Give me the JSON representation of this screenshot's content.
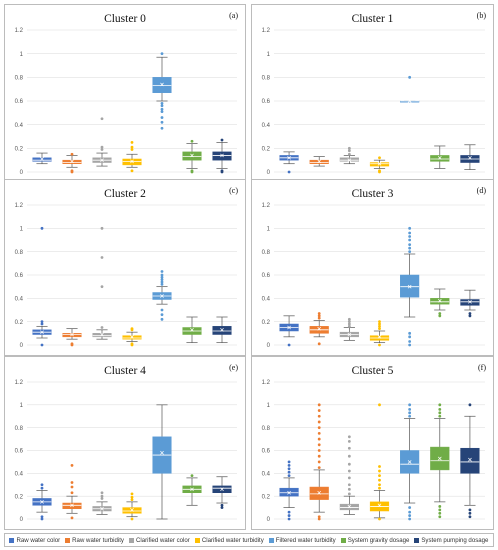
{
  "chart_data": {
    "type": "boxplot",
    "y_ticks": [
      "0",
      "0.2",
      "0.4",
      "0.6",
      "0.8",
      "1",
      "1.2"
    ],
    "ylim": [
      0,
      1.2
    ],
    "series_names": [
      "Raw water color",
      "Raw water turbidity",
      "Clarified water color",
      "Clarified water turbidity",
      "Filtered water turbidity",
      "System gravity dosage",
      "System pumping dosage"
    ],
    "series_colors": [
      "#4472C4",
      "#ED7D31",
      "#A5A5A5",
      "#FFC000",
      "#5B9BD5",
      "#70AD47",
      "#264478"
    ],
    "panels": [
      {
        "title": "Cluster 0",
        "tag": "(a)",
        "boxes": [
          {
            "min": 0.07,
            "q1": 0.09,
            "median": 0.1,
            "q3": 0.12,
            "max": 0.16,
            "mean": 0.11,
            "outliers": []
          },
          {
            "min": 0.04,
            "q1": 0.07,
            "median": 0.08,
            "q3": 0.1,
            "max": 0.14,
            "mean": 0.09,
            "outliers": [
              0.0,
              0.01,
              0.15
            ]
          },
          {
            "min": 0.05,
            "q1": 0.08,
            "median": 0.1,
            "q3": 0.12,
            "max": 0.16,
            "mean": 0.1,
            "outliers": [
              0.19,
              0.21,
              0.45
            ]
          },
          {
            "min": 0.04,
            "q1": 0.06,
            "median": 0.09,
            "q3": 0.11,
            "max": 0.15,
            "mean": 0.09,
            "outliers": [
              0.01,
              0.19,
              0.21,
              0.25
            ]
          },
          {
            "min": 0.6,
            "q1": 0.67,
            "median": 0.73,
            "q3": 0.8,
            "max": 0.97,
            "mean": 0.74,
            "outliers": [
              0.37,
              0.42,
              0.46,
              0.51,
              0.53,
              0.56,
              0.58,
              1.0
            ]
          },
          {
            "min": 0.03,
            "q1": 0.1,
            "median": 0.13,
            "q3": 0.17,
            "max": 0.24,
            "mean": 0.14,
            "outliers": [
              0.0,
              0.01,
              0.26
            ]
          },
          {
            "min": 0.03,
            "q1": 0.1,
            "median": 0.14,
            "q3": 0.17,
            "max": 0.25,
            "mean": 0.14,
            "outliers": [
              0.0,
              0.01,
              0.27
            ]
          }
        ]
      },
      {
        "title": "Cluster 1",
        "tag": "(b)",
        "boxes": [
          {
            "min": 0.07,
            "q1": 0.1,
            "median": 0.12,
            "q3": 0.14,
            "max": 0.17,
            "mean": 0.12,
            "outliers": [
              0.0
            ]
          },
          {
            "min": 0.05,
            "q1": 0.07,
            "median": 0.08,
            "q3": 0.1,
            "max": 0.13,
            "mean": 0.09,
            "outliers": []
          },
          {
            "min": 0.07,
            "q1": 0.09,
            "median": 0.1,
            "q3": 0.12,
            "max": 0.14,
            "mean": 0.1,
            "outliers": [
              0.15,
              0.18,
              0.2
            ]
          },
          {
            "min": 0.03,
            "q1": 0.05,
            "median": 0.07,
            "q3": 0.08,
            "max": 0.1,
            "mean": 0.07,
            "outliers": [
              0.0,
              0.01,
              0.12
            ]
          },
          {
            "min": 0.6,
            "q1": 0.6,
            "median": 0.6,
            "q3": 0.6,
            "max": 0.6,
            "mean": 0.6,
            "outliers": [
              0.8
            ]
          },
          {
            "min": 0.03,
            "q1": 0.09,
            "median": 0.11,
            "q3": 0.14,
            "max": 0.22,
            "mean": 0.12,
            "outliers": []
          },
          {
            "min": 0.02,
            "q1": 0.08,
            "median": 0.11,
            "q3": 0.14,
            "max": 0.23,
            "mean": 0.12,
            "outliers": []
          }
        ]
      },
      {
        "title": "Cluster 2",
        "tag": "(c)",
        "boxes": [
          {
            "min": 0.06,
            "q1": 0.09,
            "median": 0.11,
            "q3": 0.13,
            "max": 0.16,
            "mean": 0.11,
            "outliers": [
              0.0,
              0.18,
              0.2,
              1.0
            ]
          },
          {
            "min": 0.05,
            "q1": 0.07,
            "median": 0.09,
            "q3": 0.1,
            "max": 0.14,
            "mean": 0.09,
            "outliers": [
              0.0,
              0.01
            ]
          },
          {
            "min": 0.05,
            "q1": 0.07,
            "median": 0.08,
            "q3": 0.1,
            "max": 0.13,
            "mean": 0.09,
            "outliers": [
              0.15,
              0.5,
              0.75,
              1.0
            ]
          },
          {
            "min": 0.03,
            "q1": 0.05,
            "median": 0.06,
            "q3": 0.08,
            "max": 0.11,
            "mean": 0.07,
            "outliers": [
              0.0,
              0.01,
              0.13,
              0.14
            ]
          },
          {
            "min": 0.35,
            "q1": 0.39,
            "median": 0.42,
            "q3": 0.45,
            "max": 0.5,
            "mean": 0.42,
            "outliers": [
              0.22,
              0.26,
              0.3,
              0.52,
              0.54,
              0.56,
              0.58,
              0.6,
              0.63
            ]
          },
          {
            "min": 0.02,
            "q1": 0.09,
            "median": 0.12,
            "q3": 0.15,
            "max": 0.24,
            "mean": 0.13,
            "outliers": []
          },
          {
            "min": 0.02,
            "q1": 0.09,
            "median": 0.12,
            "q3": 0.16,
            "max": 0.24,
            "mean": 0.13,
            "outliers": []
          }
        ]
      },
      {
        "title": "Cluster 3",
        "tag": "(d)",
        "boxes": [
          {
            "min": 0.07,
            "q1": 0.12,
            "median": 0.15,
            "q3": 0.18,
            "max": 0.25,
            "mean": 0.15,
            "outliers": [
              0.0
            ]
          },
          {
            "min": 0.07,
            "q1": 0.1,
            "median": 0.13,
            "q3": 0.16,
            "max": 0.21,
            "mean": 0.14,
            "outliers": [
              0.01,
              0.23,
              0.25,
              0.27
            ]
          },
          {
            "min": 0.04,
            "q1": 0.07,
            "median": 0.09,
            "q3": 0.11,
            "max": 0.15,
            "mean": 0.09,
            "outliers": [
              0.16,
              0.18,
              0.2,
              0.22
            ]
          },
          {
            "min": 0.02,
            "q1": 0.04,
            "median": 0.06,
            "q3": 0.08,
            "max": 0.12,
            "mean": 0.07,
            "outliers": [
              0.0,
              0.14,
              0.16,
              0.18,
              0.2
            ]
          },
          {
            "min": 0.24,
            "q1": 0.41,
            "median": 0.5,
            "q3": 0.6,
            "max": 0.78,
            "mean": 0.5,
            "outliers": [
              0.0,
              0.03,
              0.07,
              0.1,
              0.8,
              0.83,
              0.86,
              0.9,
              0.93,
              0.96,
              1.0
            ]
          },
          {
            "min": 0.3,
            "q1": 0.35,
            "median": 0.37,
            "q3": 0.4,
            "max": 0.48,
            "mean": 0.38,
            "outliers": [
              0.25,
              0.27
            ]
          },
          {
            "min": 0.3,
            "q1": 0.34,
            "median": 0.37,
            "q3": 0.39,
            "max": 0.47,
            "mean": 0.37,
            "outliers": [
              0.25,
              0.27
            ]
          }
        ]
      },
      {
        "title": "Cluster 4",
        "tag": "(e)",
        "boxes": [
          {
            "min": 0.06,
            "q1": 0.12,
            "median": 0.15,
            "q3": 0.18,
            "max": 0.25,
            "mean": 0.15,
            "outliers": [
              0.0,
              0.02,
              0.27,
              0.3
            ]
          },
          {
            "min": 0.05,
            "q1": 0.09,
            "median": 0.12,
            "q3": 0.14,
            "max": 0.2,
            "mean": 0.12,
            "outliers": [
              0.01,
              0.23,
              0.28,
              0.32,
              0.47
            ]
          },
          {
            "min": 0.04,
            "q1": 0.07,
            "median": 0.09,
            "q3": 0.11,
            "max": 0.15,
            "mean": 0.09,
            "outliers": [
              0.18,
              0.2,
              0.23
            ]
          },
          {
            "min": 0.02,
            "q1": 0.05,
            "median": 0.07,
            "q3": 0.1,
            "max": 0.15,
            "mean": 0.08,
            "outliers": [
              0.0,
              0.17,
              0.19,
              0.22
            ]
          },
          {
            "min": 0.0,
            "q1": 0.4,
            "median": 0.56,
            "q3": 0.72,
            "max": 1.0,
            "mean": 0.58,
            "outliers": []
          },
          {
            "min": 0.12,
            "q1": 0.23,
            "median": 0.26,
            "q3": 0.29,
            "max": 0.36,
            "mean": 0.26,
            "outliers": [
              0.38
            ]
          },
          {
            "min": 0.14,
            "q1": 0.23,
            "median": 0.27,
            "q3": 0.29,
            "max": 0.37,
            "mean": 0.26,
            "outliers": [
              0.1,
              0.12
            ]
          }
        ]
      },
      {
        "title": "Cluster 5",
        "tag": "(f)",
        "boxes": [
          {
            "min": 0.1,
            "q1": 0.2,
            "median": 0.23,
            "q3": 0.27,
            "max": 0.36,
            "mean": 0.23,
            "outliers": [
              0.0,
              0.03,
              0.06,
              0.38,
              0.41,
              0.44,
              0.47,
              0.5
            ]
          },
          {
            "min": 0.06,
            "q1": 0.17,
            "median": 0.22,
            "q3": 0.28,
            "max": 0.43,
            "mean": 0.23,
            "outliers": [
              0.0,
              0.02,
              0.45,
              0.5,
              0.55,
              0.6,
              0.65,
              0.7,
              0.75,
              0.8,
              0.85,
              0.9,
              0.95,
              1.0
            ]
          },
          {
            "min": 0.04,
            "q1": 0.08,
            "median": 0.1,
            "q3": 0.13,
            "max": 0.2,
            "mean": 0.11,
            "outliers": [
              0.22,
              0.26,
              0.3,
              0.36,
              0.42,
              0.48,
              0.55,
              0.62,
              0.68,
              0.72
            ]
          },
          {
            "min": 0.01,
            "q1": 0.07,
            "median": 0.11,
            "q3": 0.15,
            "max": 0.25,
            "mean": 0.12,
            "outliers": [
              0.0,
              0.27,
              0.3,
              0.34,
              0.38,
              0.42,
              0.46,
              1.0
            ]
          },
          {
            "min": 0.14,
            "q1": 0.4,
            "median": 0.48,
            "q3": 0.6,
            "max": 0.88,
            "mean": 0.5,
            "outliers": [
              0.0,
              0.03,
              0.06,
              0.1,
              0.9,
              0.93,
              0.96,
              1.0
            ]
          },
          {
            "min": 0.15,
            "q1": 0.43,
            "median": 0.51,
            "q3": 0.63,
            "max": 0.88,
            "mean": 0.53,
            "outliers": [
              0.02,
              0.05,
              0.08,
              0.11,
              0.9,
              0.93,
              0.96,
              1.0
            ]
          },
          {
            "min": 0.12,
            "q1": 0.4,
            "median": 0.5,
            "q3": 0.62,
            "max": 0.9,
            "mean": 0.52,
            "outliers": [
              0.02,
              0.05,
              0.08,
              1.0
            ]
          }
        ]
      }
    ]
  }
}
